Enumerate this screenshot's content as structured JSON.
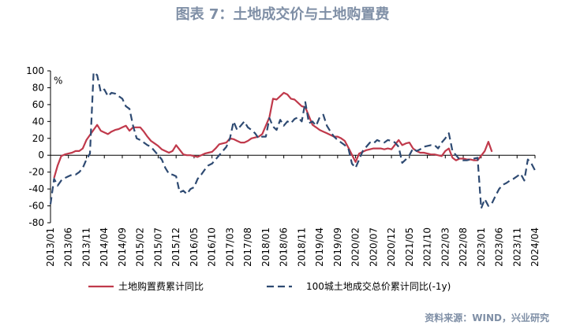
{
  "title": "图表 7：土地成交价与土地购置费",
  "source": "资料来源：WIND，兴业研究",
  "chart_data": {
    "type": "line",
    "unit_label": "%",
    "ylim": [
      -80,
      100
    ],
    "yticks": [
      -80,
      -60,
      -40,
      -20,
      0,
      20,
      40,
      60,
      80,
      100
    ],
    "x_range": [
      "2013/01",
      "2024/04"
    ],
    "xtick_labels": [
      "2013/01",
      "2013/06",
      "2013/11",
      "2014/04",
      "2014/09",
      "2015/02",
      "2015/07",
      "2015/12",
      "2016/05",
      "2016/10",
      "2017/03",
      "2017/08",
      "2018/01",
      "2018/06",
      "2018/11",
      "2019/04",
      "2019/09",
      "2020/02",
      "2020/07",
      "2020/12",
      "2021/05",
      "2021/10",
      "2022/03",
      "2022/08",
      "2023/01",
      "2023/06",
      "2023/11",
      "2024/04"
    ],
    "grid": false,
    "legend_position": "bottom",
    "series": [
      {
        "name": "土地购置费累计同比",
        "color": "#c0394b",
        "style": "solid",
        "points": [
          [
            "2013/02",
            -27
          ],
          [
            "2013/03",
            -12
          ],
          [
            "2013/04",
            -1
          ],
          [
            "2013/05",
            1
          ],
          [
            "2013/06",
            2
          ],
          [
            "2013/07",
            3
          ],
          [
            "2013/08",
            5
          ],
          [
            "2013/09",
            5
          ],
          [
            "2013/10",
            8
          ],
          [
            "2013/11",
            18
          ],
          [
            "2014/02",
            36
          ],
          [
            "2014/03",
            29
          ],
          [
            "2014/04",
            27
          ],
          [
            "2014/05",
            25
          ],
          [
            "2014/06",
            28
          ],
          [
            "2014/07",
            30
          ],
          [
            "2014/08",
            31
          ],
          [
            "2014/09",
            33
          ],
          [
            "2014/10",
            35
          ],
          [
            "2014/11",
            29
          ],
          [
            "2014/12",
            33
          ],
          [
            "2015/02",
            33
          ],
          [
            "2015/03",
            28
          ],
          [
            "2015/04",
            22
          ],
          [
            "2015/05",
            17
          ],
          [
            "2015/06",
            14
          ],
          [
            "2015/07",
            11
          ],
          [
            "2015/08",
            7
          ],
          [
            "2015/09",
            5
          ],
          [
            "2015/10",
            3
          ],
          [
            "2015/11",
            5
          ],
          [
            "2015/12",
            12
          ],
          [
            "2016/02",
            1
          ],
          [
            "2016/03",
            0
          ],
          [
            "2016/04",
            0
          ],
          [
            "2016/05",
            -1
          ],
          [
            "2016/06",
            -2
          ],
          [
            "2016/07",
            0
          ],
          [
            "2016/08",
            2
          ],
          [
            "2016/09",
            3
          ],
          [
            "2016/10",
            4
          ],
          [
            "2016/11",
            8
          ],
          [
            "2016/12",
            13
          ],
          [
            "2017/02",
            15
          ],
          [
            "2017/03",
            20
          ],
          [
            "2017/04",
            19
          ],
          [
            "2017/05",
            17
          ],
          [
            "2017/06",
            15
          ],
          [
            "2017/07",
            15
          ],
          [
            "2017/08",
            17
          ],
          [
            "2017/09",
            20
          ],
          [
            "2017/10",
            21
          ],
          [
            "2017/11",
            22
          ],
          [
            "2017/12",
            25
          ],
          [
            "2018/02",
            45
          ],
          [
            "2018/03",
            67
          ],
          [
            "2018/04",
            66
          ],
          [
            "2018/05",
            70
          ],
          [
            "2018/06",
            74
          ],
          [
            "2018/07",
            72
          ],
          [
            "2018/08",
            67
          ],
          [
            "2018/09",
            66
          ],
          [
            "2018/10",
            62
          ],
          [
            "2018/11",
            58
          ],
          [
            "2018/12",
            57
          ],
          [
            "2019/02",
            36
          ],
          [
            "2019/03",
            33
          ],
          [
            "2019/04",
            30
          ],
          [
            "2019/05",
            28
          ],
          [
            "2019/06",
            26
          ],
          [
            "2019/07",
            24
          ],
          [
            "2019/08",
            22
          ],
          [
            "2019/09",
            22
          ],
          [
            "2019/10",
            20
          ],
          [
            "2019/11",
            17
          ],
          [
            "2019/12",
            9
          ],
          [
            "2020/02",
            -8
          ],
          [
            "2020/03",
            2
          ],
          [
            "2020/04",
            4
          ],
          [
            "2020/05",
            6
          ],
          [
            "2020/06",
            7
          ],
          [
            "2020/07",
            8
          ],
          [
            "2020/08",
            8
          ],
          [
            "2020/09",
            8
          ],
          [
            "2020/10",
            7
          ],
          [
            "2020/11",
            8
          ],
          [
            "2020/12",
            7
          ],
          [
            "2021/02",
            18
          ],
          [
            "2021/03",
            12
          ],
          [
            "2021/04",
            14
          ],
          [
            "2021/05",
            15
          ],
          [
            "2021/06",
            8
          ],
          [
            "2021/07",
            5
          ],
          [
            "2021/08",
            3
          ],
          [
            "2021/09",
            3
          ],
          [
            "2021/10",
            2
          ],
          [
            "2021/11",
            1
          ],
          [
            "2021/12",
            1
          ],
          [
            "2022/02",
            -1
          ],
          [
            "2022/03",
            5
          ],
          [
            "2022/04",
            8
          ],
          [
            "2022/05",
            -3
          ],
          [
            "2022/06",
            -6
          ],
          [
            "2022/07",
            -4
          ],
          [
            "2022/08",
            -4
          ],
          [
            "2022/09",
            -5
          ],
          [
            "2022/10",
            -5
          ],
          [
            "2022/11",
            -6
          ],
          [
            "2022/12",
            -6
          ],
          [
            "2023/02",
            5
          ],
          [
            "2023/03",
            16
          ],
          [
            "2023/04",
            4
          ]
        ]
      },
      {
        "name": "100城土地成交总价累计同比(-1y)",
        "color": "#2e4a72",
        "style": "dashed",
        "points": [
          [
            "2013/01",
            -58
          ],
          [
            "2013/02",
            -28
          ],
          [
            "2013/03",
            -36
          ],
          [
            "2013/04",
            -30
          ],
          [
            "2013/05",
            -27
          ],
          [
            "2013/06",
            -25
          ],
          [
            "2013/07",
            -23
          ],
          [
            "2013/08",
            -23
          ],
          [
            "2013/09",
            -20
          ],
          [
            "2013/10",
            -15
          ],
          [
            "2013/11",
            -5
          ],
          [
            "2013/12",
            2
          ],
          [
            "2014/01",
            98
          ],
          [
            "2014/02",
            95
          ],
          [
            "2014/03",
            75
          ],
          [
            "2014/04",
            78
          ],
          [
            "2014/05",
            70
          ],
          [
            "2014/06",
            74
          ],
          [
            "2014/07",
            73
          ],
          [
            "2014/08",
            70
          ],
          [
            "2014/09",
            67
          ],
          [
            "2014/10",
            58
          ],
          [
            "2014/11",
            55
          ],
          [
            "2014/12",
            35
          ],
          [
            "2015/01",
            20
          ],
          [
            "2015/02",
            18
          ],
          [
            "2015/03",
            15
          ],
          [
            "2015/04",
            12
          ],
          [
            "2015/05",
            10
          ],
          [
            "2015/06",
            5
          ],
          [
            "2015/07",
            0
          ],
          [
            "2015/08",
            -5
          ],
          [
            "2015/09",
            -15
          ],
          [
            "2015/10",
            -22
          ],
          [
            "2015/11",
            -23
          ],
          [
            "2015/12",
            -25
          ],
          [
            "2016/01",
            -44
          ],
          [
            "2016/02",
            -42
          ],
          [
            "2016/03",
            -46
          ],
          [
            "2016/04",
            -40
          ],
          [
            "2016/05",
            -38
          ],
          [
            "2016/06",
            -28
          ],
          [
            "2016/07",
            -23
          ],
          [
            "2016/08",
            -17
          ],
          [
            "2016/09",
            -12
          ],
          [
            "2016/10",
            -10
          ],
          [
            "2016/11",
            -5
          ],
          [
            "2016/12",
            0
          ],
          [
            "2017/01",
            5
          ],
          [
            "2017/02",
            10
          ],
          [
            "2017/03",
            20
          ],
          [
            "2017/04",
            40
          ],
          [
            "2017/05",
            30
          ],
          [
            "2017/06",
            35
          ],
          [
            "2017/07",
            40
          ],
          [
            "2017/08",
            33
          ],
          [
            "2017/09",
            30
          ],
          [
            "2017/10",
            26
          ],
          [
            "2017/11",
            20
          ],
          [
            "2017/12",
            22
          ],
          [
            "2018/01",
            22
          ],
          [
            "2018/02",
            44
          ],
          [
            "2018/03",
            34
          ],
          [
            "2018/04",
            30
          ],
          [
            "2018/05",
            42
          ],
          [
            "2018/06",
            35
          ],
          [
            "2018/07",
            40
          ],
          [
            "2018/08",
            38
          ],
          [
            "2018/09",
            43
          ],
          [
            "2018/10",
            45
          ],
          [
            "2018/11",
            40
          ],
          [
            "2018/12",
            63
          ],
          [
            "2019/01",
            38
          ],
          [
            "2019/02",
            40
          ],
          [
            "2019/03",
            35
          ],
          [
            "2019/04",
            45
          ],
          [
            "2019/05",
            48
          ],
          [
            "2019/06",
            35
          ],
          [
            "2019/07",
            28
          ],
          [
            "2019/08",
            22
          ],
          [
            "2019/09",
            18
          ],
          [
            "2019/10",
            15
          ],
          [
            "2019/11",
            12
          ],
          [
            "2019/12",
            8
          ],
          [
            "2020/01",
            -10
          ],
          [
            "2020/02",
            -15
          ],
          [
            "2020/03",
            -5
          ],
          [
            "2020/04",
            5
          ],
          [
            "2020/05",
            10
          ],
          [
            "2020/06",
            15
          ],
          [
            "2020/07",
            14
          ],
          [
            "2020/08",
            18
          ],
          [
            "2020/09",
            16
          ],
          [
            "2020/10",
            15
          ],
          [
            "2020/11",
            18
          ],
          [
            "2020/12",
            17
          ],
          [
            "2021/01",
            15
          ],
          [
            "2021/02",
            10
          ],
          [
            "2021/03",
            -9
          ],
          [
            "2021/04",
            -5
          ],
          [
            "2021/05",
            0
          ],
          [
            "2021/06",
            8
          ],
          [
            "2021/07",
            5
          ],
          [
            "2021/08",
            7
          ],
          [
            "2021/09",
            10
          ],
          [
            "2021/10",
            11
          ],
          [
            "2021/11",
            12
          ],
          [
            "2021/12",
            12
          ],
          [
            "2022/01",
            8
          ],
          [
            "2022/02",
            15
          ],
          [
            "2022/03",
            20
          ],
          [
            "2022/04",
            26
          ],
          [
            "2022/05",
            5
          ],
          [
            "2022/06",
            0
          ],
          [
            "2022/07",
            -5
          ],
          [
            "2022/08",
            -6
          ],
          [
            "2022/09",
            -6
          ],
          [
            "2022/10",
            -5
          ],
          [
            "2022/11",
            -4
          ],
          [
            "2022/12",
            -3
          ],
          [
            "2023/01",
            -63
          ],
          [
            "2023/02",
            -52
          ],
          [
            "2023/03",
            -60
          ],
          [
            "2023/04",
            -57
          ],
          [
            "2023/05",
            -48
          ],
          [
            "2023/06",
            -40
          ],
          [
            "2023/07",
            -35
          ],
          [
            "2023/08",
            -33
          ],
          [
            "2023/09",
            -30
          ],
          [
            "2023/10",
            -28
          ],
          [
            "2023/11",
            -25
          ],
          [
            "2023/12",
            -22
          ],
          [
            "2024/01",
            -30
          ],
          [
            "2024/02",
            -5
          ],
          [
            "2024/03",
            -10
          ],
          [
            "2024/04",
            -18
          ]
        ]
      }
    ]
  }
}
